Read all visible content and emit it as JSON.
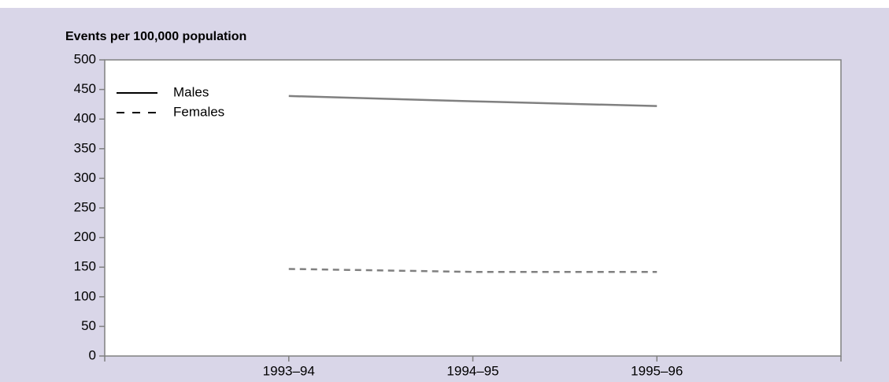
{
  "chart_data": {
    "type": "line",
    "y_label": "Events per 100,000 population",
    "categories": [
      "1993–94",
      "1994–95",
      "1995–96"
    ],
    "series": [
      {
        "name": "Males",
        "color": "#808080",
        "dash": "solid",
        "values": [
          439,
          430,
          422
        ]
      },
      {
        "name": "Females",
        "color": "#808080",
        "dash": "dashed",
        "values": [
          147,
          142,
          142
        ]
      }
    ],
    "ylim": [
      0,
      500
    ],
    "yticks": [
      0,
      50,
      100,
      150,
      200,
      250,
      300,
      350,
      400,
      450,
      500
    ],
    "legend": "upper left"
  }
}
